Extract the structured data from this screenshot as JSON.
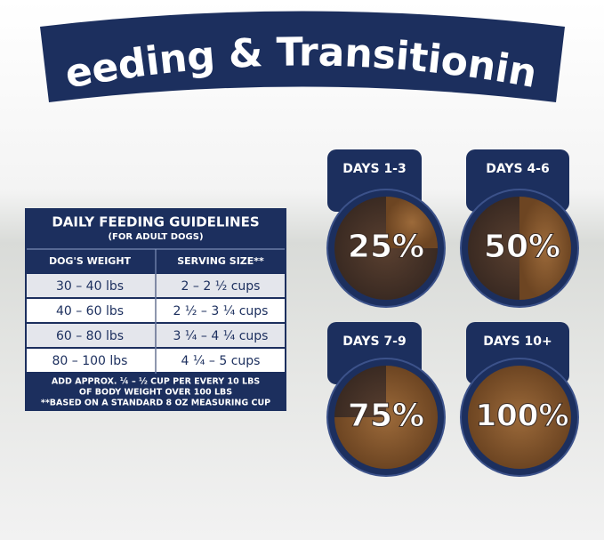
{
  "banner": {
    "title": "Feeding & Transitioning"
  },
  "table": {
    "title": "DAILY FEEDING GUIDELINES",
    "subtitle": "(FOR ADULT DOGS)",
    "headers": [
      "DOG'S WEIGHT",
      "SERVING SIZE**"
    ],
    "rows": [
      [
        "30 – 40 lbs",
        "2 – 2 ½ cups"
      ],
      [
        "40 – 60 lbs",
        "2 ½ – 3 ¼ cups"
      ],
      [
        "60 – 80 lbs",
        "3 ¼ – 4 ¼ cups"
      ],
      [
        "80 – 100 lbs",
        "4 ¼ – 5 cups"
      ]
    ],
    "notes": [
      "ADD APPROX. ¼ – ½ CUP PER EVERY 10 LBS",
      "OF BODY WEIGHT OVER 100 LBS",
      "**BASED ON A STANDARD 8 OZ MEASURING CUP"
    ]
  },
  "transition": [
    {
      "days": "DAYS 1-3",
      "percent": "25%"
    },
    {
      "days": "DAYS 4-6",
      "percent": "50%"
    },
    {
      "days": "DAYS 7-9",
      "percent": "75%"
    },
    {
      "days": "DAYS 10+",
      "percent": "100%"
    }
  ]
}
